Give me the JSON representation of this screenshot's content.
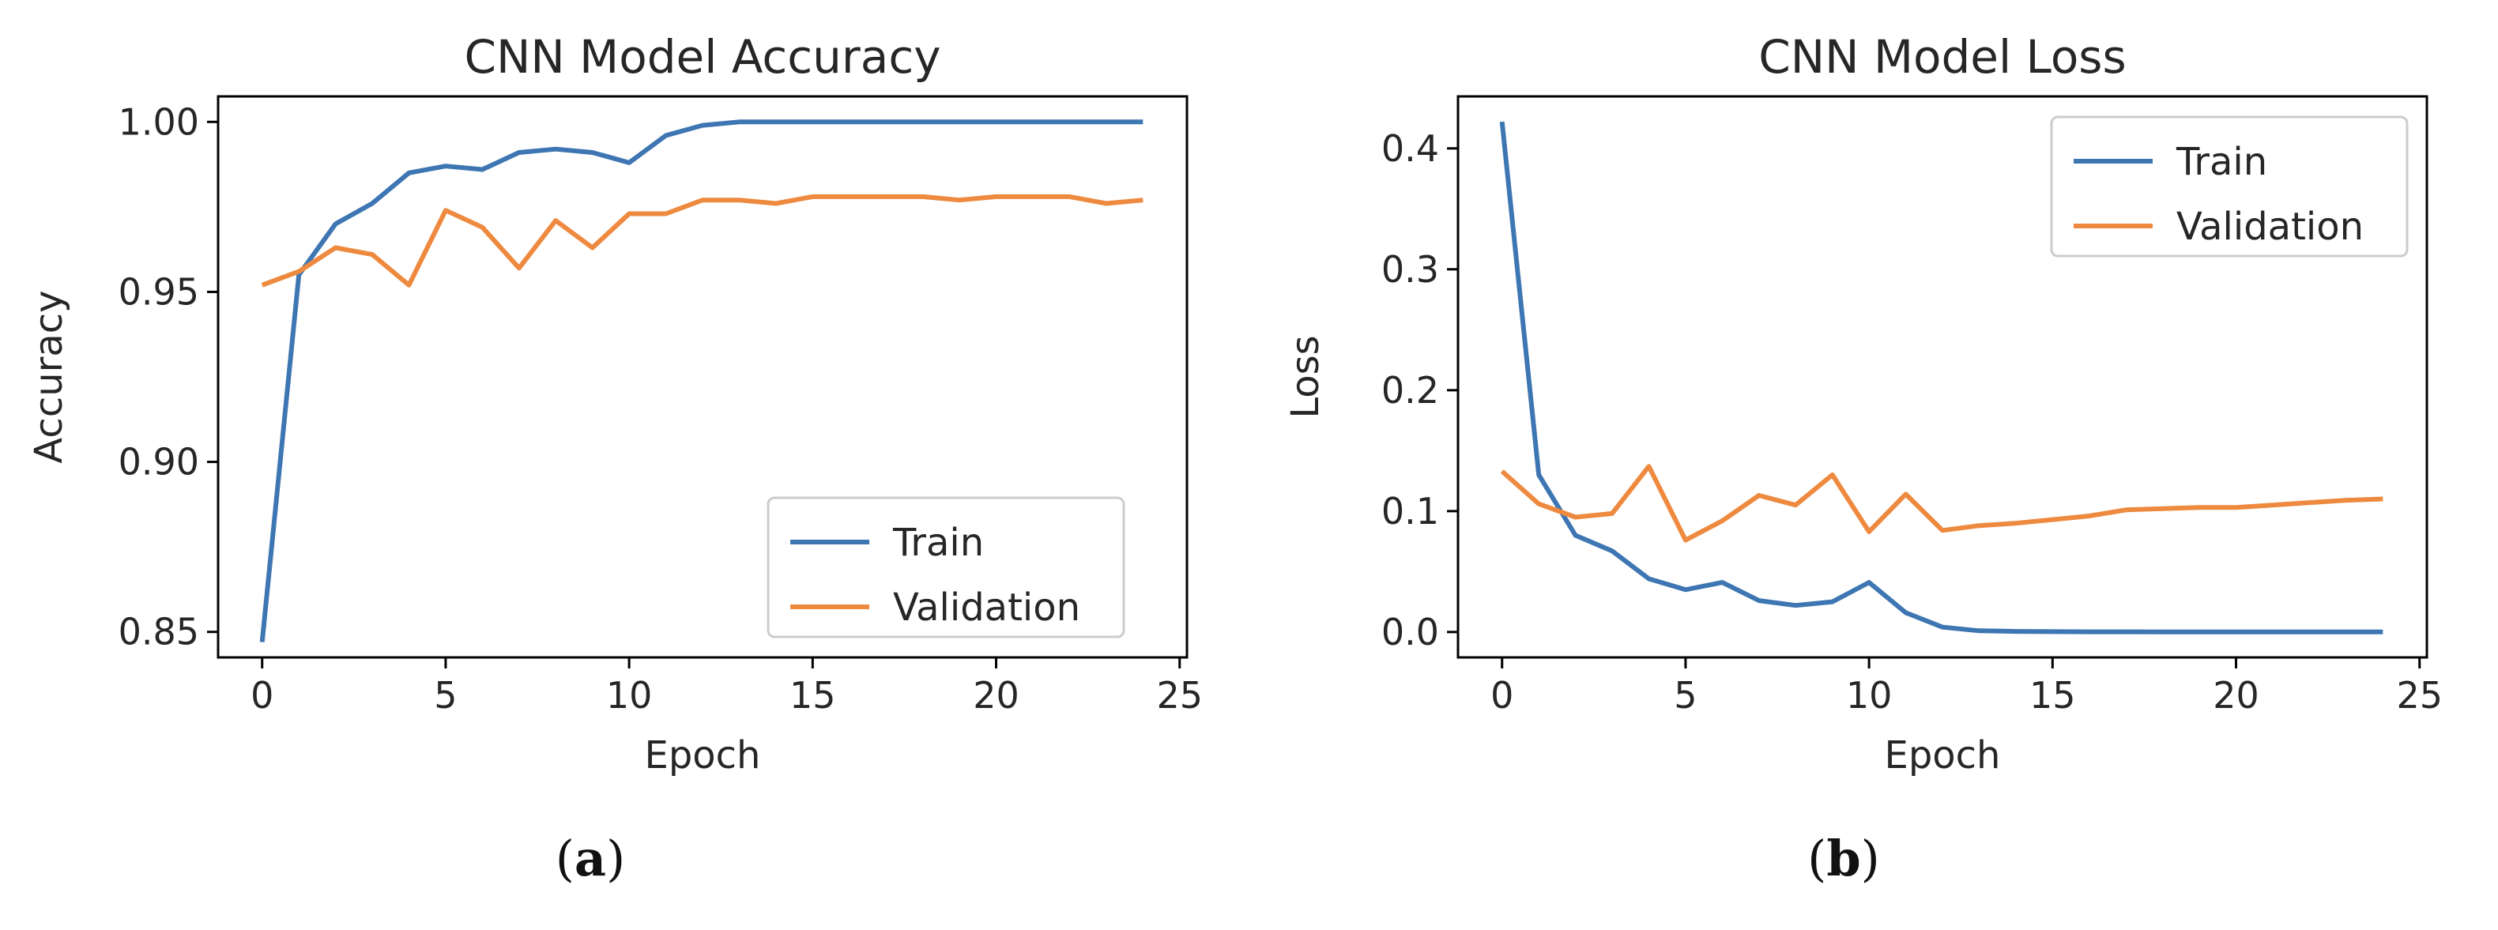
{
  "chart_data": [
    {
      "type": "line",
      "title": "CNN Model Accuracy",
      "xlabel": "Epoch",
      "ylabel": "Accuracy",
      "xlim": [
        -1.2,
        25.2
      ],
      "ylim": [
        0.8425,
        1.0075
      ],
      "xticks": [
        0,
        5,
        10,
        15,
        20,
        25
      ],
      "xtick_labels": [
        "0",
        "5",
        "10",
        "15",
        "20",
        "25"
      ],
      "yticks": [
        0.85,
        0.9,
        0.95,
        1.0
      ],
      "ytick_labels": [
        "0.85",
        "0.90",
        "0.95",
        "1.00"
      ],
      "grid": false,
      "legend_position": "lower-right",
      "x": [
        0,
        1,
        2,
        3,
        4,
        5,
        6,
        7,
        8,
        9,
        10,
        11,
        12,
        13,
        14,
        15,
        16,
        17,
        18,
        19,
        20,
        21,
        22,
        23,
        24
      ],
      "series": [
        {
          "name": "Train",
          "color": "#3d76b2",
          "values": [
            0.847,
            0.955,
            0.97,
            0.976,
            0.985,
            0.987,
            0.986,
            0.991,
            0.992,
            0.991,
            0.988,
            0.996,
            0.999,
            1.0,
            1.0,
            1.0,
            1.0,
            1.0,
            1.0,
            1.0,
            1.0,
            1.0,
            1.0,
            1.0,
            1.0
          ]
        },
        {
          "name": "Validation",
          "color": "#ee8a3f",
          "values": [
            0.952,
            0.956,
            0.963,
            0.961,
            0.952,
            0.974,
            0.969,
            0.957,
            0.971,
            0.963,
            0.973,
            0.973,
            0.977,
            0.977,
            0.976,
            0.978,
            0.978,
            0.978,
            0.978,
            0.977,
            0.978,
            0.978,
            0.978,
            0.976,
            0.977
          ]
        }
      ],
      "caption_letter": "a",
      "caption_left": "(",
      "caption_right": ")"
    },
    {
      "type": "line",
      "title": "CNN Model Loss",
      "xlabel": "Epoch",
      "ylabel": "Loss",
      "xlim": [
        -1.2,
        25.2
      ],
      "ylim": [
        -0.021,
        0.443
      ],
      "xticks": [
        0,
        5,
        10,
        15,
        20,
        25
      ],
      "xtick_labels": [
        "0",
        "5",
        "10",
        "15",
        "20",
        "25"
      ],
      "yticks": [
        0.0,
        0.1,
        0.2,
        0.3,
        0.4
      ],
      "ytick_labels": [
        "0.0",
        "0.1",
        "0.2",
        "0.3",
        "0.4"
      ],
      "grid": false,
      "legend_position": "top-right",
      "x": [
        0,
        1,
        2,
        3,
        4,
        5,
        6,
        7,
        8,
        9,
        10,
        11,
        12,
        13,
        14,
        15,
        16,
        17,
        18,
        19,
        20,
        21,
        22,
        23,
        24
      ],
      "series": [
        {
          "name": "Train",
          "color": "#3d76b2",
          "values": [
            0.422,
            0.13,
            0.08,
            0.067,
            0.044,
            0.035,
            0.041,
            0.026,
            0.022,
            0.025,
            0.041,
            0.016,
            0.004,
            0.001,
            0.0005,
            0.0003,
            0.0002,
            0.0002,
            0.0001,
            0.0001,
            0.0001,
            0.0001,
            0.0001,
            0.0001,
            0.0001
          ]
        },
        {
          "name": "Validation",
          "color": "#ee8a3f",
          "values": [
            0.133,
            0.106,
            0.095,
            0.098,
            0.137,
            0.076,
            0.092,
            0.113,
            0.105,
            0.13,
            0.083,
            0.114,
            0.084,
            0.088,
            0.09,
            0.093,
            0.096,
            0.101,
            0.102,
            0.103,
            0.103,
            0.105,
            0.107,
            0.109,
            0.11
          ]
        }
      ],
      "caption_letter": "b",
      "caption_left": "(",
      "caption_right": ")"
    }
  ]
}
